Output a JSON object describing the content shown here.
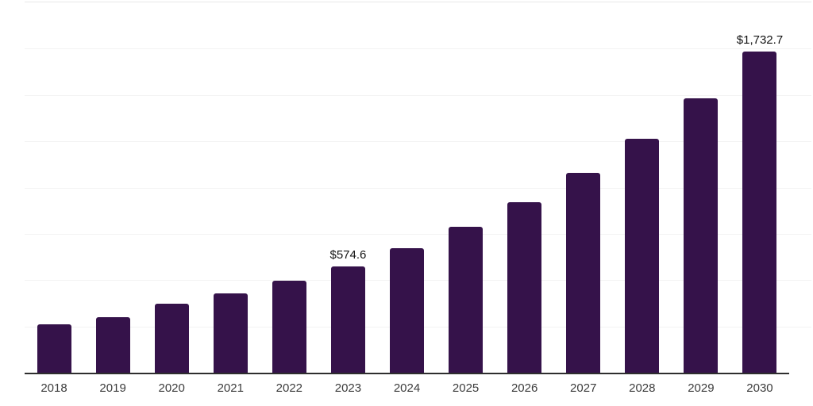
{
  "chart_data": {
    "type": "bar",
    "title": "",
    "xlabel": "",
    "ylabel": "",
    "categories": [
      "2018",
      "2019",
      "2020",
      "2021",
      "2022",
      "2023",
      "2024",
      "2025",
      "2026",
      "2027",
      "2028",
      "2029",
      "2030"
    ],
    "values": [
      259.9,
      299.8,
      371.3,
      428.3,
      496.8,
      574.6,
      672.7,
      787.6,
      922.2,
      1079.7,
      1264.2,
      1480.2,
      1732.7
    ],
    "value_labels": [
      "",
      "",
      "",
      "",
      "",
      "$574.6",
      "",
      "",
      "",
      "",
      "",
      "",
      "$1,732.7"
    ],
    "ylim": [
      0,
      2000
    ],
    "grid_step": 250,
    "grid": true,
    "legend_position": "none",
    "colors": {
      "bar": "#35124a",
      "axis_line": "#2e2e2e",
      "grid_line": "#f3f3f3",
      "plot_top_line": "#e9e9e9",
      "tick_label": "#3c3c3c",
      "value_label": "#121212",
      "background": "#ffffff"
    }
  }
}
